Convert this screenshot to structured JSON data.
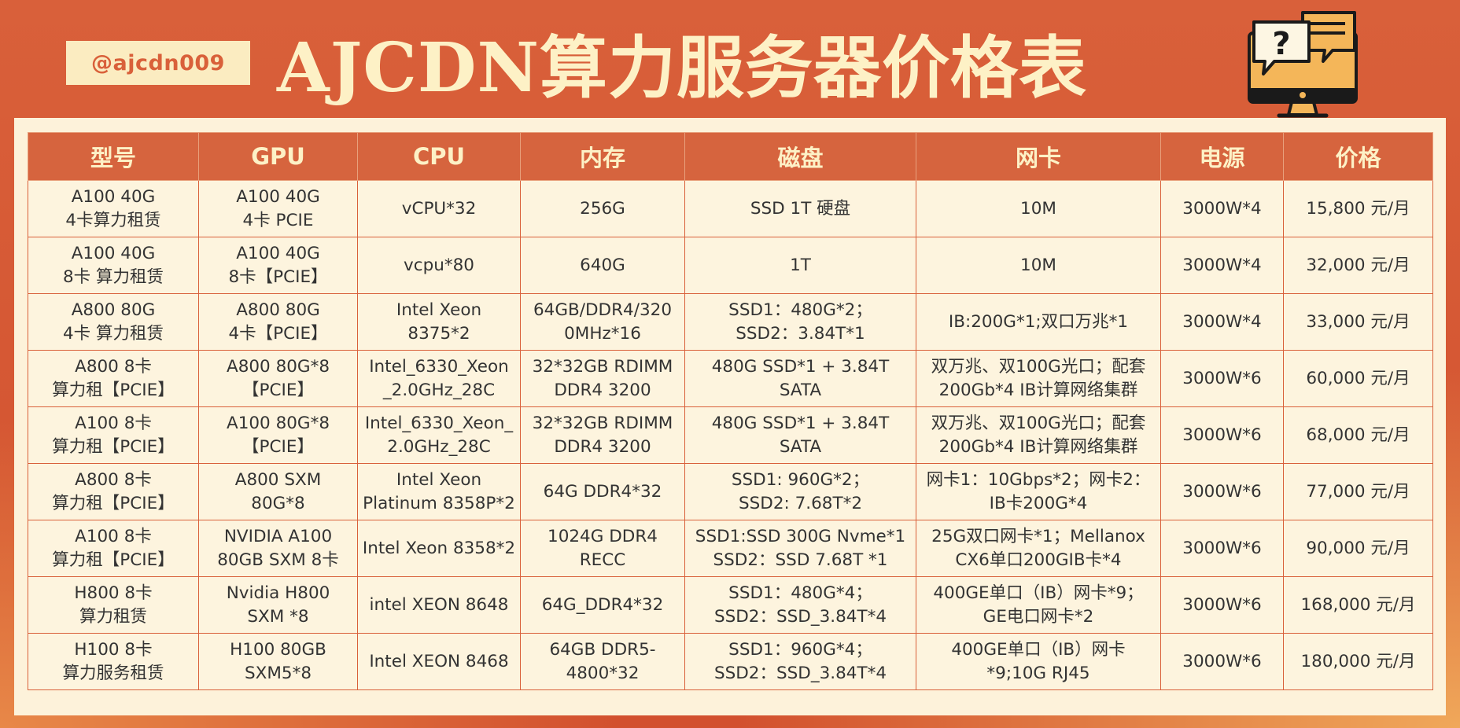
{
  "header": {
    "handle": "@ajcdn009",
    "title": "AJCDN算力服务器价格表",
    "icon": "computer-question-chat-icon"
  },
  "colors": {
    "background": "#d9603a",
    "accent_cream": "#fdf1c6",
    "table_bg": "#fdf4de",
    "header_bg": "#d6643e",
    "border": "#d9603a"
  },
  "table": {
    "columns": [
      "型号",
      "GPU",
      "CPU",
      "内存",
      "磁盘",
      "网卡",
      "电源",
      "价格"
    ],
    "rows": [
      [
        "A100 40G\n4卡算力租赁",
        "A100 40G\n4卡 PCIE",
        "vCPU*32",
        "256G",
        "SSD 1T 硬盘",
        "10M",
        "3000W*4",
        "15,800 元/月"
      ],
      [
        "A100 40G\n8卡 算力租赁",
        "A100 40G\n8卡【PCIE】",
        "vcpu*80",
        "640G",
        "1T",
        "10M",
        "3000W*4",
        "32,000 元/月"
      ],
      [
        "A800 80G\n4卡 算力租赁",
        "A800 80G\n4卡【PCIE】",
        "Intel Xeon\n8375*2",
        "64GB/DDR4/320\n0MHz*16",
        "SSD1：480G*2；\nSSD2：3.84T*1",
        "IB:200G*1;双口万兆*1",
        "3000W*4",
        "33,000 元/月"
      ],
      [
        "A800 8卡\n算力租【PCIE】",
        "A800 80G*8\n【PCIE】",
        "Intel_6330_Xeon\n_2.0GHz_28C",
        "32*32GB RDIMM\nDDR4 3200",
        "480G SSD*1 + 3.84T\nSATA",
        "双万兆、双100G光口；配套\n200Gb*4 IB计算网络集群",
        "3000W*6",
        "60,000 元/月"
      ],
      [
        "A100 8卡\n算力租【PCIE】",
        "A100 80G*8\n【PCIE】",
        "Intel_6330_Xeon_\n2.0GHz_28C",
        "32*32GB RDIMM\nDDR4 3200",
        "480G SSD*1 + 3.84T\nSATA",
        "双万兆、双100G光口；配套\n200Gb*4 IB计算网络集群",
        "3000W*6",
        "68,000 元/月"
      ],
      [
        "A800 8卡\n算力租【PCIE】",
        "A800 SXM\n80G*8",
        "Intel Xeon\nPlatinum 8358P*2",
        "64G DDR4*32",
        "SSD1: 960G*2；\nSSD2: 7.68T*2",
        "网卡1：10Gbps*2；网卡2：\nIB卡200G*4",
        "3000W*6",
        "77,000 元/月"
      ],
      [
        "A100 8卡\n算力租【PCIE】",
        "NVIDIA A100\n80GB SXM 8卡",
        "Intel Xeon 8358*2",
        "1024G DDR4\nRECC",
        "SSD1:SSD 300G Nvme*1\nSSD2：SSD 7.68T *1",
        "25G双口网卡*1；Mellanox\nCX6单口200GIB卡*4",
        "3000W*6",
        "90,000 元/月"
      ],
      [
        "H800 8卡\n算力租赁",
        "Nvidia H800\nSXM *8",
        "intel XEON 8648",
        "64G_DDR4*32",
        "SSD1：480G*4；\nSSD2：SSD_3.84T*4",
        "400GE单口（IB）网卡*9；\nGE电口网卡*2",
        "3000W*6",
        "168,000 元/月"
      ],
      [
        "H100 8卡\n算力服务租赁",
        "H100 80GB\nSXM5*8",
        "Intel XEON 8468",
        "64GB DDR5-\n4800*32",
        "SSD1：960G*4；\nSSD2：SSD_3.84T*4",
        "400GE单口（IB）网卡\n*9;10G RJ45",
        "3000W*6",
        "180,000 元/月"
      ]
    ]
  }
}
